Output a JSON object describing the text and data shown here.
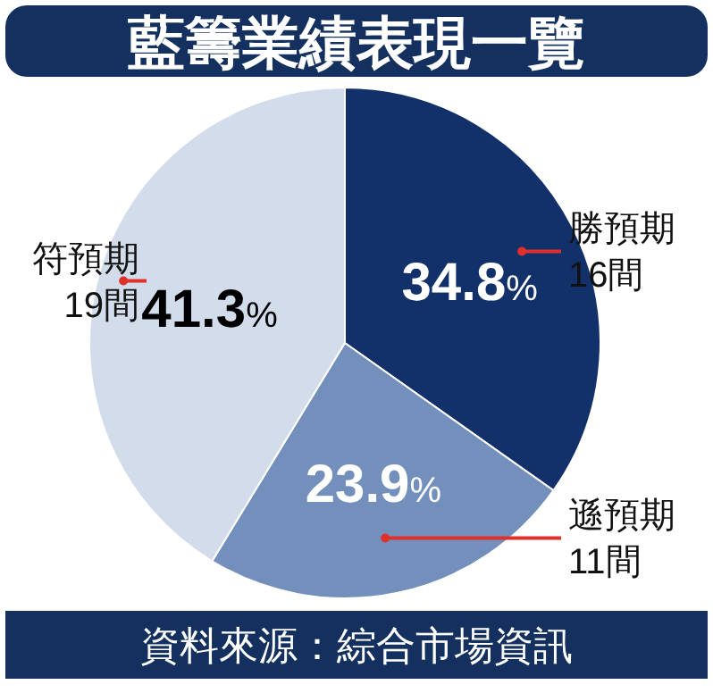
{
  "chart_data": {
    "type": "pie",
    "title": "藍籌業績表現一覽",
    "categories": [
      "勝預期\n16間",
      "遜預期\n11間",
      "符預期\n19間"
    ],
    "values": [
      34.8,
      23.9,
      41.3
    ],
    "colors": [
      "#12306a",
      "#7390bd",
      "#d3dcea"
    ],
    "value_labels": [
      "34.8%",
      "23.9%",
      "41.3%"
    ],
    "annotations": [
      "資料來源：綜合市場資訊"
    ]
  }
}
